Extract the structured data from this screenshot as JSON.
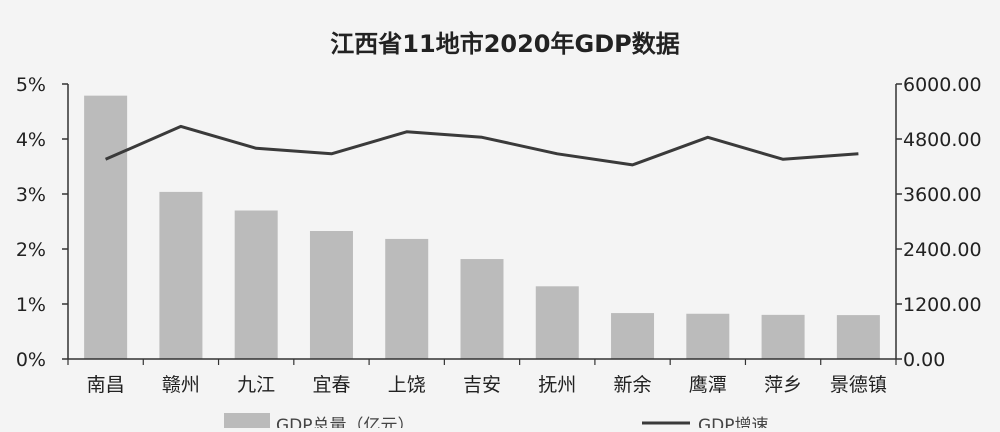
{
  "chart_data": {
    "type": "bar",
    "title": "江西省11地市2020年GDP数据",
    "categories": [
      "南昌",
      "赣州",
      "九江",
      "宜春",
      "上饶",
      "吉安",
      "抚州",
      "新余",
      "鹰潭",
      "萍乡",
      "景德镇"
    ],
    "series": [
      {
        "name": "GDP总量（亿元）",
        "type": "bar",
        "axis": "right",
        "color": "#bbbbbb",
        "values": [
          5746,
          3646,
          3240,
          2793,
          2620,
          2181,
          1586,
          1002,
          987,
          963,
          958
        ]
      },
      {
        "name": "GDP增速",
        "type": "line",
        "axis": "left",
        "color": "#3a3a3a",
        "values": [
          0.0363,
          0.0423,
          0.0383,
          0.0373,
          0.0413,
          0.0403,
          0.0373,
          0.0353,
          0.0403,
          0.0363,
          0.0373
        ]
      }
    ],
    "y_left": {
      "range": [
        0,
        0.05
      ],
      "ticks": [
        0,
        0.01,
        0.02,
        0.03,
        0.04,
        0.05
      ],
      "tick_labels": [
        "0%",
        "1%",
        "2%",
        "3%",
        "4%",
        "5%"
      ]
    },
    "y_right": {
      "range": [
        0,
        6000
      ],
      "ticks": [
        0,
        1200,
        2400,
        3600,
        4800,
        6000
      ],
      "tick_labels": [
        "0.00",
        "1200.00",
        "2400.00",
        "3600.00",
        "4800.00",
        "6000.00"
      ]
    },
    "grid": false,
    "legend_position": "bottom"
  }
}
